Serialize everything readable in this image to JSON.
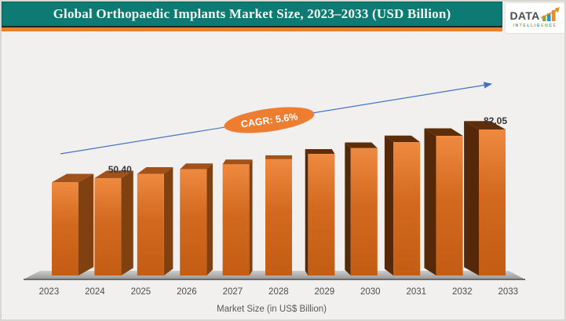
{
  "header": {
    "title": "Global Orthopaedic Implants Market Size, 2023–2033 (USD Billion)",
    "band_color": "#0d7b74",
    "accent_strip_color": "#e8802e"
  },
  "logo": {
    "text": "DATA",
    "sub_text": "INTELLIGENCE",
    "bar_colors": [
      "#76b043",
      "#2196c9",
      "#f28a1e"
    ],
    "arrow_color": "#f28a1e"
  },
  "chart_data": {
    "type": "bar",
    "title": "Global Orthopaedic Implants Market Size, 2023–2033 (USD Billion)",
    "xlabel": "Market Size (in US$ Billion)",
    "categories": [
      "2023",
      "2024",
      "2025",
      "2026",
      "2027",
      "2028",
      "2029",
      "2030",
      "2031",
      "2032",
      "2033"
    ],
    "values": [
      47.73,
      50.4,
      53.22,
      56.2,
      59.35,
      62.67,
      66.18,
      69.89,
      73.8,
      77.93,
      82.05
    ],
    "labeled_points": [
      {
        "category": "2024",
        "label": "50.40"
      },
      {
        "category": "2033",
        "label": "82.05"
      }
    ],
    "annotation": {
      "text": "CAGR: 5.6%",
      "fill": "#ed7d31",
      "text_color": "#ffffff"
    },
    "trend_arrow_color": "#4472c4",
    "bar_front_color": "#d2691e",
    "bar_side_color": "#6e3309",
    "axis_label_color": "#4d4d4d",
    "legend": "none",
    "grid": "off",
    "ylim": [
      0,
      90
    ]
  }
}
